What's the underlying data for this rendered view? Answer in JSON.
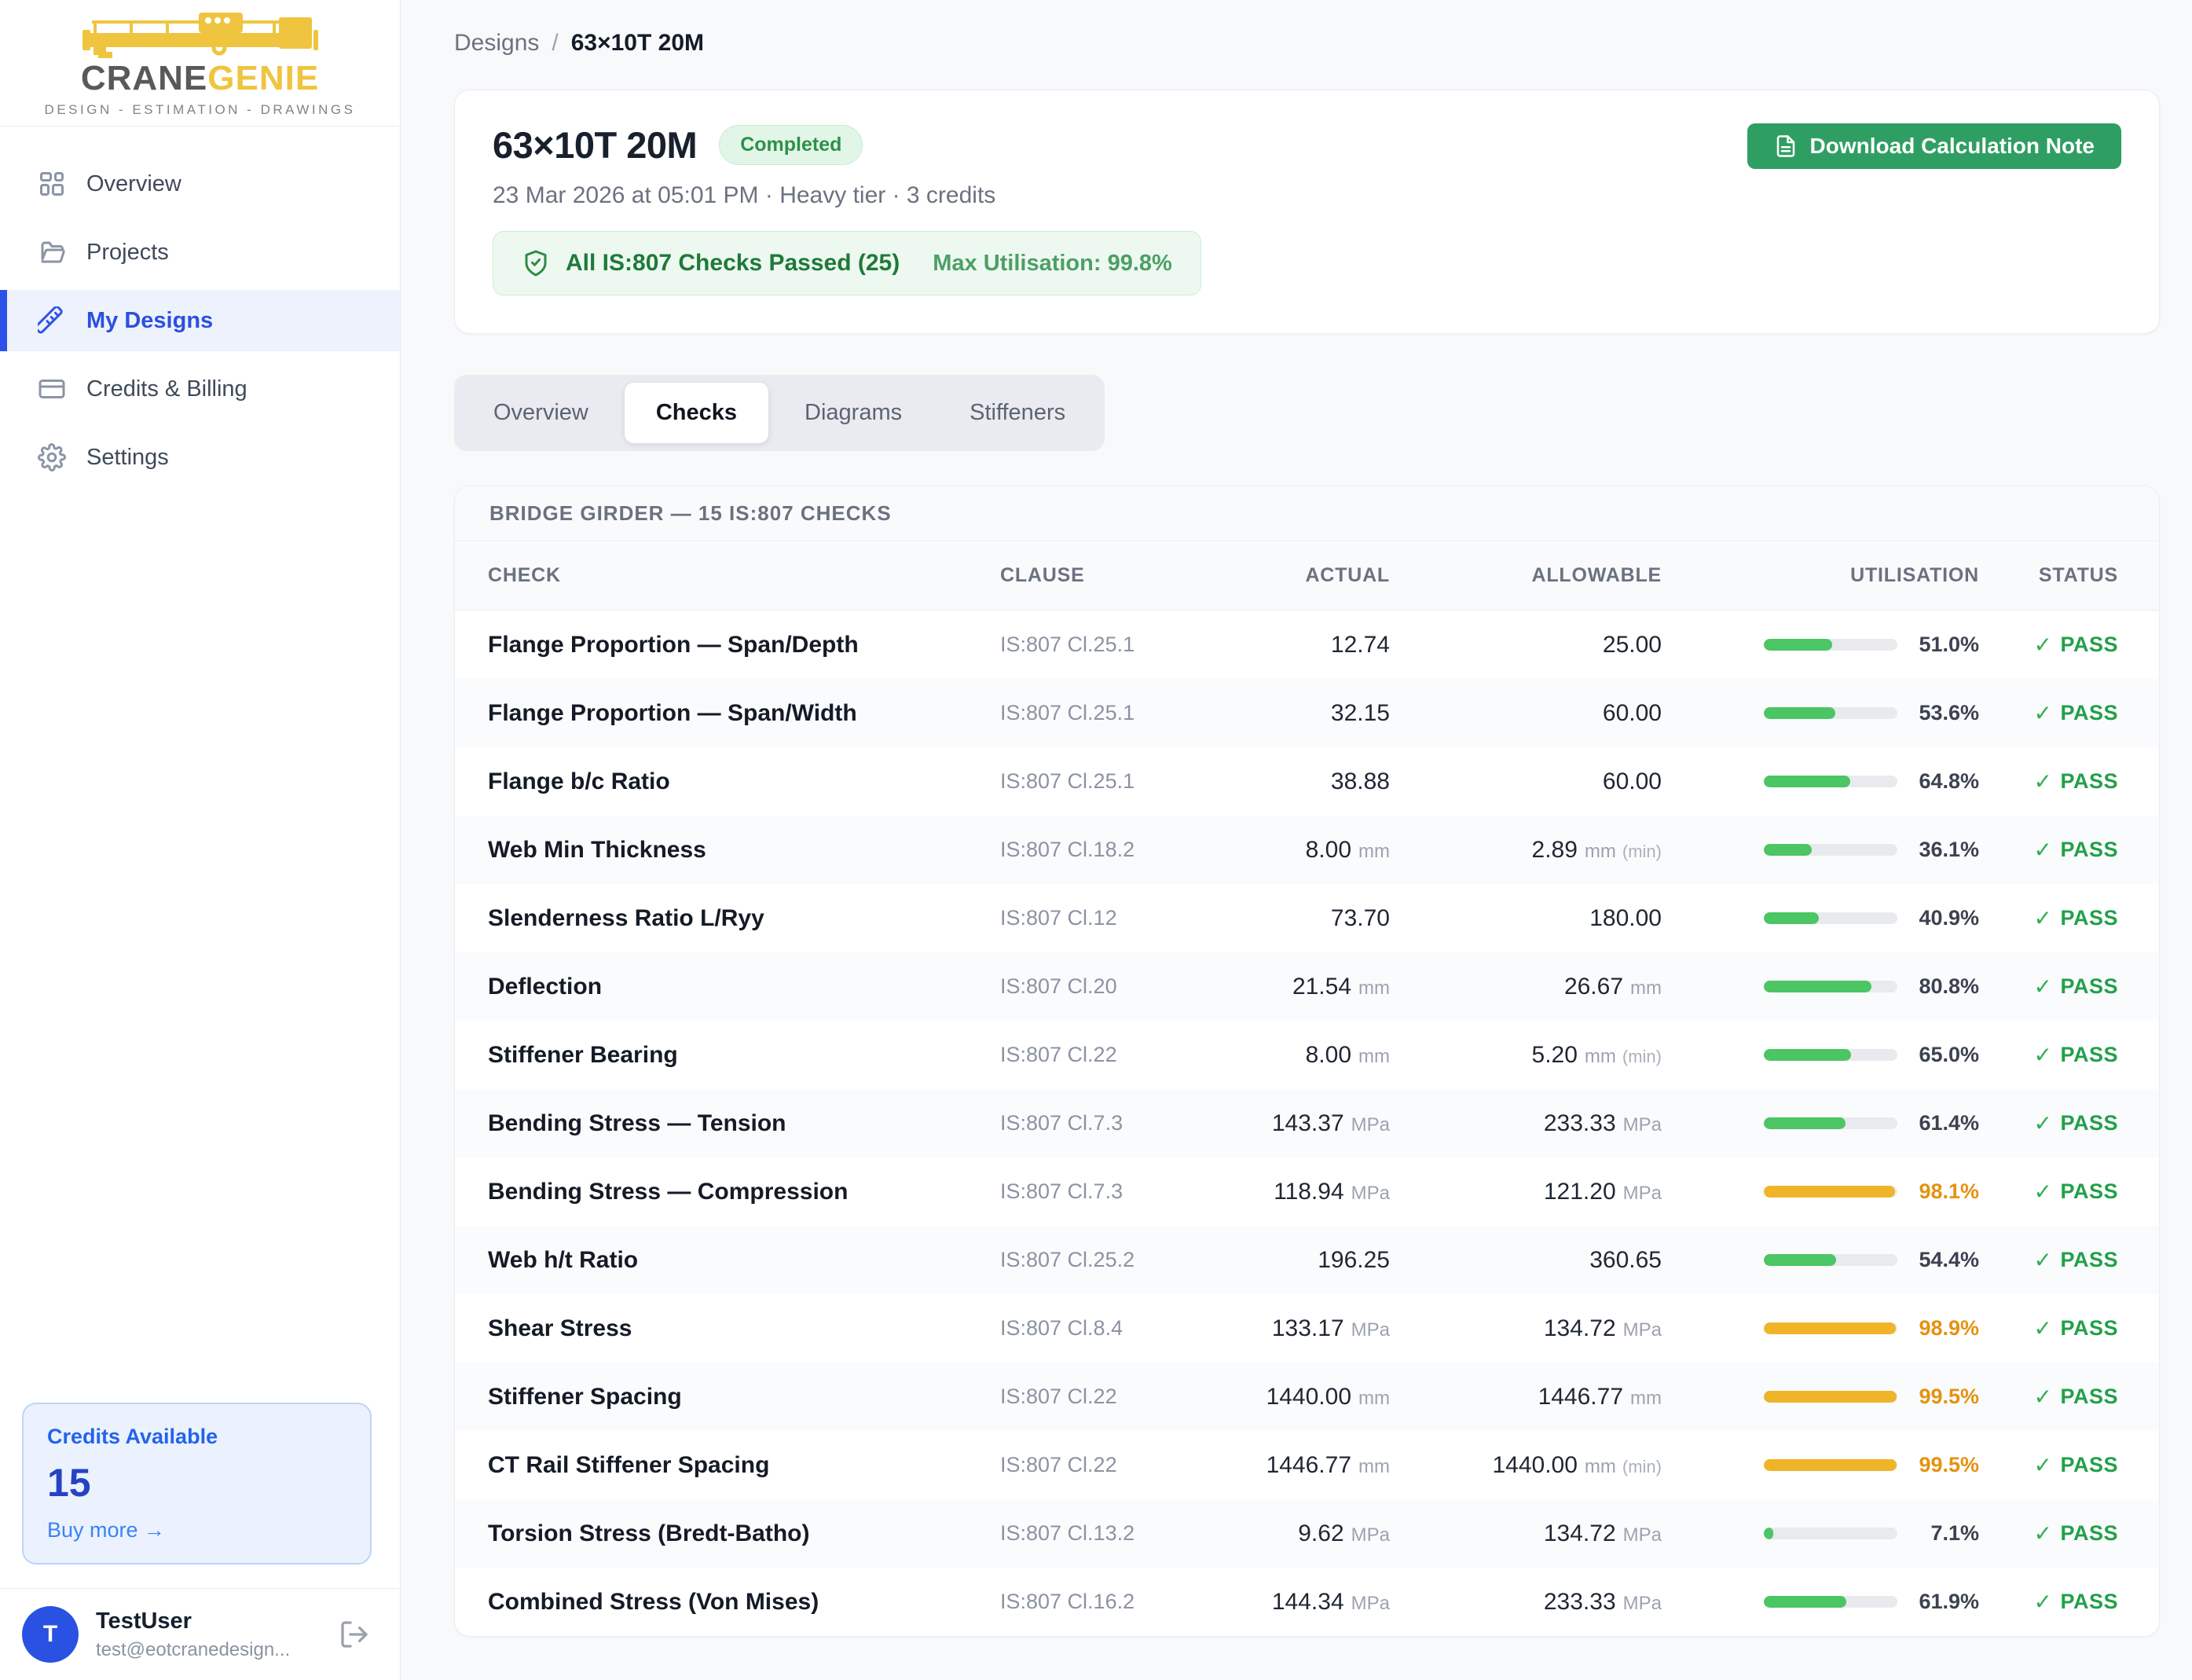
{
  "brand": {
    "word1": "CRANE",
    "word2": "GENIE",
    "tagline": "DESIGN - ESTIMATION - DRAWINGS"
  },
  "sidebar": {
    "items": [
      {
        "label": "Overview",
        "icon": "grid-icon",
        "active": false
      },
      {
        "label": "Projects",
        "icon": "folder-icon",
        "active": false
      },
      {
        "label": "My Designs",
        "icon": "ruler-icon",
        "active": true
      },
      {
        "label": "Credits & Billing",
        "icon": "credit-card-icon",
        "active": false
      },
      {
        "label": "Settings",
        "icon": "gear-icon",
        "active": false
      }
    ],
    "credits": {
      "title": "Credits Available",
      "count": "15",
      "link": "Buy more →"
    },
    "user": {
      "initial": "T",
      "name": "TestUser",
      "email": "test@eotcranedesign..."
    }
  },
  "breadcrumb": {
    "parent": "Designs",
    "separator": "/",
    "current": "63×10T 20M"
  },
  "header": {
    "title": "63×10T 20M",
    "status_badge": "Completed",
    "meta": "23 Mar 2026 at 05:01 PM · Heavy tier · 3 credits",
    "banner": {
      "text": "All IS:807 Checks Passed (25)",
      "utilisation": "Max Utilisation: 99.8%"
    },
    "download_button": "Download Calculation Note"
  },
  "tabs": [
    {
      "label": "Overview",
      "active": false
    },
    {
      "label": "Checks",
      "active": true
    },
    {
      "label": "Diagrams",
      "active": false
    },
    {
      "label": "Stiffeners",
      "active": false
    }
  ],
  "table": {
    "title": "BRIDGE GIRDER — 15 IS:807 CHECKS",
    "columns": [
      "CHECK",
      "CLAUSE",
      "ACTUAL",
      "ALLOWABLE",
      "UTILISATION",
      "STATUS"
    ],
    "colors": {
      "bar_ok": "#4cc564",
      "bar_warn": "#f0b429",
      "pct_warn_text": "#e5920f",
      "pass_green": "#23a04a"
    },
    "rows": [
      {
        "check": "Flange Proportion — Span/Depth",
        "clause": "IS:807 Cl.25.1",
        "actual": "12.74",
        "actual_unit": "",
        "allowable": "25.00",
        "allowable_unit": "",
        "allowable_suffix": "",
        "utilisation": 51.0,
        "utilisation_label": "51.0%",
        "level": "ok",
        "status": "PASS"
      },
      {
        "check": "Flange Proportion — Span/Width",
        "clause": "IS:807 Cl.25.1",
        "actual": "32.15",
        "actual_unit": "",
        "allowable": "60.00",
        "allowable_unit": "",
        "allowable_suffix": "",
        "utilisation": 53.6,
        "utilisation_label": "53.6%",
        "level": "ok",
        "status": "PASS"
      },
      {
        "check": "Flange b/c Ratio",
        "clause": "IS:807 Cl.25.1",
        "actual": "38.88",
        "actual_unit": "",
        "allowable": "60.00",
        "allowable_unit": "",
        "allowable_suffix": "",
        "utilisation": 64.8,
        "utilisation_label": "64.8%",
        "level": "ok",
        "status": "PASS"
      },
      {
        "check": "Web Min Thickness",
        "clause": "IS:807 Cl.18.2",
        "actual": "8.00",
        "actual_unit": "mm",
        "allowable": "2.89",
        "allowable_unit": "mm",
        "allowable_suffix": "(min)",
        "utilisation": 36.1,
        "utilisation_label": "36.1%",
        "level": "ok",
        "status": "PASS"
      },
      {
        "check": "Slenderness Ratio L/Ryy",
        "clause": "IS:807 Cl.12",
        "actual": "73.70",
        "actual_unit": "",
        "allowable": "180.00",
        "allowable_unit": "",
        "allowable_suffix": "",
        "utilisation": 40.9,
        "utilisation_label": "40.9%",
        "level": "ok",
        "status": "PASS"
      },
      {
        "check": "Deflection",
        "clause": "IS:807 Cl.20",
        "actual": "21.54",
        "actual_unit": "mm",
        "allowable": "26.67",
        "allowable_unit": "mm",
        "allowable_suffix": "",
        "utilisation": 80.8,
        "utilisation_label": "80.8%",
        "level": "ok",
        "status": "PASS"
      },
      {
        "check": "Stiffener Bearing",
        "clause": "IS:807 Cl.22",
        "actual": "8.00",
        "actual_unit": "mm",
        "allowable": "5.20",
        "allowable_unit": "mm",
        "allowable_suffix": "(min)",
        "utilisation": 65.0,
        "utilisation_label": "65.0%",
        "level": "ok",
        "status": "PASS"
      },
      {
        "check": "Bending Stress — Tension",
        "clause": "IS:807 Cl.7.3",
        "actual": "143.37",
        "actual_unit": "MPa",
        "allowable": "233.33",
        "allowable_unit": "MPa",
        "allowable_suffix": "",
        "utilisation": 61.4,
        "utilisation_label": "61.4%",
        "level": "ok",
        "status": "PASS"
      },
      {
        "check": "Bending Stress — Compression",
        "clause": "IS:807 Cl.7.3",
        "actual": "118.94",
        "actual_unit": "MPa",
        "allowable": "121.20",
        "allowable_unit": "MPa",
        "allowable_suffix": "",
        "utilisation": 98.1,
        "utilisation_label": "98.1%",
        "level": "warn",
        "status": "PASS"
      },
      {
        "check": "Web h/t Ratio",
        "clause": "IS:807 Cl.25.2",
        "actual": "196.25",
        "actual_unit": "",
        "allowable": "360.65",
        "allowable_unit": "",
        "allowable_suffix": "",
        "utilisation": 54.4,
        "utilisation_label": "54.4%",
        "level": "ok",
        "status": "PASS"
      },
      {
        "check": "Shear Stress",
        "clause": "IS:807 Cl.8.4",
        "actual": "133.17",
        "actual_unit": "MPa",
        "allowable": "134.72",
        "allowable_unit": "MPa",
        "allowable_suffix": "",
        "utilisation": 98.9,
        "utilisation_label": "98.9%",
        "level": "warn",
        "status": "PASS"
      },
      {
        "check": "Stiffener Spacing",
        "clause": "IS:807 Cl.22",
        "actual": "1440.00",
        "actual_unit": "mm",
        "allowable": "1446.77",
        "allowable_unit": "mm",
        "allowable_suffix": "",
        "utilisation": 99.5,
        "utilisation_label": "99.5%",
        "level": "warn",
        "status": "PASS"
      },
      {
        "check": "CT Rail Stiffener Spacing",
        "clause": "IS:807 Cl.22",
        "actual": "1446.77",
        "actual_unit": "mm",
        "allowable": "1440.00",
        "allowable_unit": "mm",
        "allowable_suffix": "(min)",
        "utilisation": 99.5,
        "utilisation_label": "99.5%",
        "level": "warn",
        "status": "PASS"
      },
      {
        "check": "Torsion Stress (Bredt-Batho)",
        "clause": "IS:807 Cl.13.2",
        "actual": "9.62",
        "actual_unit": "MPa",
        "allowable": "134.72",
        "allowable_unit": "MPa",
        "allowable_suffix": "",
        "utilisation": 7.1,
        "utilisation_label": "7.1%",
        "level": "ok",
        "status": "PASS"
      },
      {
        "check": "Combined Stress (Von Mises)",
        "clause": "IS:807 Cl.16.2",
        "actual": "144.34",
        "actual_unit": "MPa",
        "allowable": "233.33",
        "allowable_unit": "MPa",
        "allowable_suffix": "",
        "utilisation": 61.9,
        "utilisation_label": "61.9%",
        "level": "ok",
        "status": "PASS"
      }
    ]
  }
}
